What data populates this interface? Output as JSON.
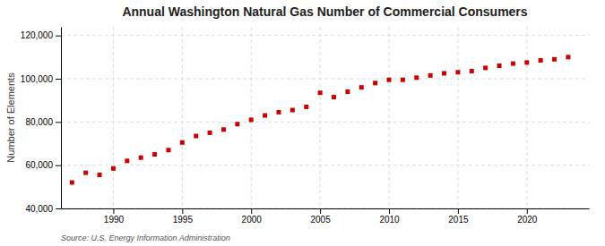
{
  "chart_data": {
    "type": "scatter",
    "title": "Annual Washington Natural Gas Number of Commercial Consumers",
    "ylabel": "Number of Elements",
    "source": "Source: U.S. Energy Information Administration",
    "x": [
      1987,
      1988,
      1989,
      1990,
      1991,
      1992,
      1993,
      1994,
      1995,
      1996,
      1997,
      1998,
      1999,
      2000,
      2001,
      2002,
      2003,
      2004,
      2005,
      2006,
      2007,
      2008,
      2009,
      2010,
      2011,
      2012,
      2013,
      2014,
      2015,
      2016,
      2017,
      2018,
      2019,
      2020,
      2021,
      2022,
      2023
    ],
    "values": [
      52000,
      56500,
      55500,
      58500,
      62000,
      63500,
      65000,
      67000,
      70500,
      73500,
      75000,
      76500,
      79000,
      81000,
      83000,
      84500,
      85500,
      87000,
      93500,
      91500,
      94000,
      96000,
      98000,
      99500,
      99500,
      100500,
      101500,
      102500,
      103000,
      103500,
      105000,
      106000,
      107000,
      107500,
      108500,
      109000,
      110000
    ],
    "color": "#cc0000",
    "marker": "square",
    "xlim": [
      1986.2,
      2024.5
    ],
    "xticks": [
      1990,
      1995,
      2000,
      2005,
      2010,
      2015,
      2020
    ],
    "ylim": [
      40000,
      124000
    ],
    "yticks": [
      {
        "value": 40000,
        "label": "40,000"
      },
      {
        "value": 60000,
        "label": "60,000"
      },
      {
        "value": 80000,
        "label": "80,000"
      },
      {
        "value": 100000,
        "label": "100,000"
      },
      {
        "value": 120000,
        "label": "120,000"
      }
    ],
    "grid": true
  }
}
